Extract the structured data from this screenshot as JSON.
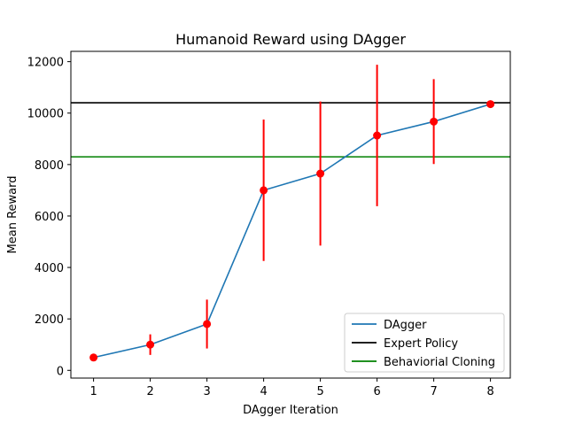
{
  "chart_data": {
    "type": "line",
    "title": "Humanoid Reward using DAgger",
    "xlabel": "DAgger Iteration",
    "ylabel": "Mean Reward",
    "xlim": [
      0.6,
      8.35
    ],
    "ylim": [
      -300,
      12400
    ],
    "xticks": [
      1,
      2,
      3,
      4,
      5,
      6,
      7,
      8
    ],
    "yticks": [
      0,
      2000,
      4000,
      6000,
      8000,
      10000,
      12000
    ],
    "grid": false,
    "legend_position": "lower-right",
    "series": [
      {
        "name": "DAgger",
        "kind": "line",
        "color": "#1f77b4",
        "x": [
          1,
          2,
          3,
          4,
          5,
          6,
          7,
          8
        ],
        "y": [
          500,
          1000,
          1800,
          7000,
          7650,
          9130,
          9670,
          10350
        ]
      },
      {
        "name": "Expert Policy",
        "kind": "hline",
        "color": "#000000",
        "y": 10400
      },
      {
        "name": "Behaviorial Cloning",
        "kind": "hline",
        "color": "#008000",
        "y": 8300
      }
    ],
    "error_bars": {
      "color": "#ff0000",
      "marker_color": "#ff0000",
      "x": [
        1,
        2,
        3,
        4,
        5,
        6,
        7,
        8
      ],
      "y": [
        500,
        1000,
        1800,
        7000,
        7650,
        9130,
        9670,
        10350
      ],
      "yerr": [
        60,
        400,
        950,
        2750,
        2800,
        2750,
        1650,
        50
      ]
    }
  }
}
